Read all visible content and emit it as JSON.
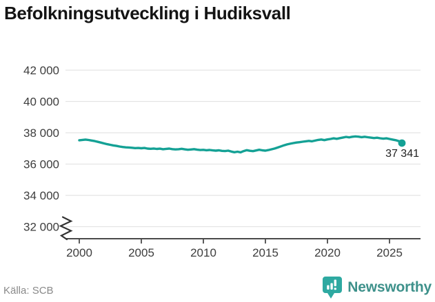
{
  "title": "Befolkningsutveckling i Hudiksvall",
  "source": {
    "label": "Källa: SCB"
  },
  "logo": {
    "name": "Newsworthy",
    "icon": "newsworthy-speech-bubble-bars-icon"
  },
  "colors": {
    "line": "#14a195",
    "grid": "#e4e4e4",
    "axis": "#4a4a4a",
    "tick_label": "#3d3d3d",
    "title": "#141414",
    "point_label": "#1f1f1f",
    "source_text": "#898989",
    "logo_teal": "#2ea9a1",
    "logo_text": "#3e918b"
  },
  "chart_data": {
    "type": "line",
    "title": "Befolkningsutveckling i Hudiksvall",
    "xlabel": "",
    "ylabel": "",
    "grid": "horizontal",
    "legend": "none",
    "axis_break_below_ymin": true,
    "xlim": [
      2000,
      2027.4
    ],
    "ylim": [
      32000,
      42000
    ],
    "x_ticks": {
      "values": [
        2000,
        2005,
        2010,
        2015,
        2020,
        2025
      ],
      "labels": [
        "2000",
        "2005",
        "2010",
        "2015",
        "2020",
        "2025"
      ]
    },
    "y_ticks": {
      "values": [
        42000,
        40000,
        38000,
        36000,
        34000,
        32000
      ],
      "labels": [
        "42 000",
        "40 000",
        "38 000",
        "36 000",
        "34 000",
        "32 000"
      ]
    },
    "end_point": {
      "x": 2026,
      "value": 37341,
      "label": "37 341"
    },
    "series": [
      {
        "name": "",
        "color": "#14a195",
        "x": [
          2000.0,
          2000.25,
          2000.5,
          2000.75,
          2001.0,
          2001.25,
          2001.5,
          2001.75,
          2002.0,
          2002.25,
          2002.5,
          2002.75,
          2003.0,
          2003.25,
          2003.5,
          2003.75,
          2004.0,
          2004.25,
          2004.5,
          2004.75,
          2005.0,
          2005.25,
          2005.5,
          2005.75,
          2006.0,
          2006.25,
          2006.5,
          2006.75,
          2007.0,
          2007.25,
          2007.5,
          2007.75,
          2008.0,
          2008.25,
          2008.5,
          2008.75,
          2009.0,
          2009.25,
          2009.5,
          2009.75,
          2010.0,
          2010.25,
          2010.5,
          2010.75,
          2011.0,
          2011.25,
          2011.5,
          2011.75,
          2012.0,
          2012.25,
          2012.5,
          2012.75,
          2013.0,
          2013.25,
          2013.5,
          2013.75,
          2014.0,
          2014.25,
          2014.5,
          2014.75,
          2015.0,
          2015.25,
          2015.5,
          2015.75,
          2016.0,
          2016.25,
          2016.5,
          2016.75,
          2017.0,
          2017.25,
          2017.5,
          2017.75,
          2018.0,
          2018.25,
          2018.5,
          2018.75,
          2019.0,
          2019.25,
          2019.5,
          2019.75,
          2020.0,
          2020.25,
          2020.5,
          2020.75,
          2021.0,
          2021.25,
          2021.5,
          2021.75,
          2022.0,
          2022.25,
          2022.5,
          2022.75,
          2023.0,
          2023.25,
          2023.5,
          2023.75,
          2024.0,
          2024.25,
          2024.5,
          2024.75,
          2025.0,
          2025.25,
          2025.5,
          2025.75,
          2026.0
        ],
        "values": [
          37520,
          37545,
          37565,
          37540,
          37505,
          37470,
          37420,
          37370,
          37320,
          37270,
          37230,
          37190,
          37160,
          37120,
          37090,
          37070,
          37060,
          37040,
          37020,
          37030,
          37010,
          37030,
          36990,
          36975,
          36995,
          36965,
          36985,
          36950,
          36970,
          36990,
          36955,
          36935,
          36950,
          36975,
          36940,
          36915,
          36930,
          36955,
          36920,
          36895,
          36910,
          36885,
          36900,
          36875,
          36855,
          36880,
          36845,
          36830,
          36855,
          36800,
          36755,
          36790,
          36750,
          36830,
          36890,
          36850,
          36825,
          36870,
          36915,
          36880,
          36855,
          36895,
          36945,
          36995,
          37060,
          37130,
          37200,
          37255,
          37300,
          37340,
          37375,
          37400,
          37430,
          37455,
          37480,
          37455,
          37500,
          37545,
          37570,
          37530,
          37575,
          37605,
          37645,
          37615,
          37655,
          37695,
          37735,
          37705,
          37745,
          37765,
          37750,
          37720,
          37745,
          37715,
          37690,
          37660,
          37685,
          37650,
          37620,
          37645,
          37605,
          37565,
          37525,
          37470,
          37341
        ]
      }
    ]
  }
}
